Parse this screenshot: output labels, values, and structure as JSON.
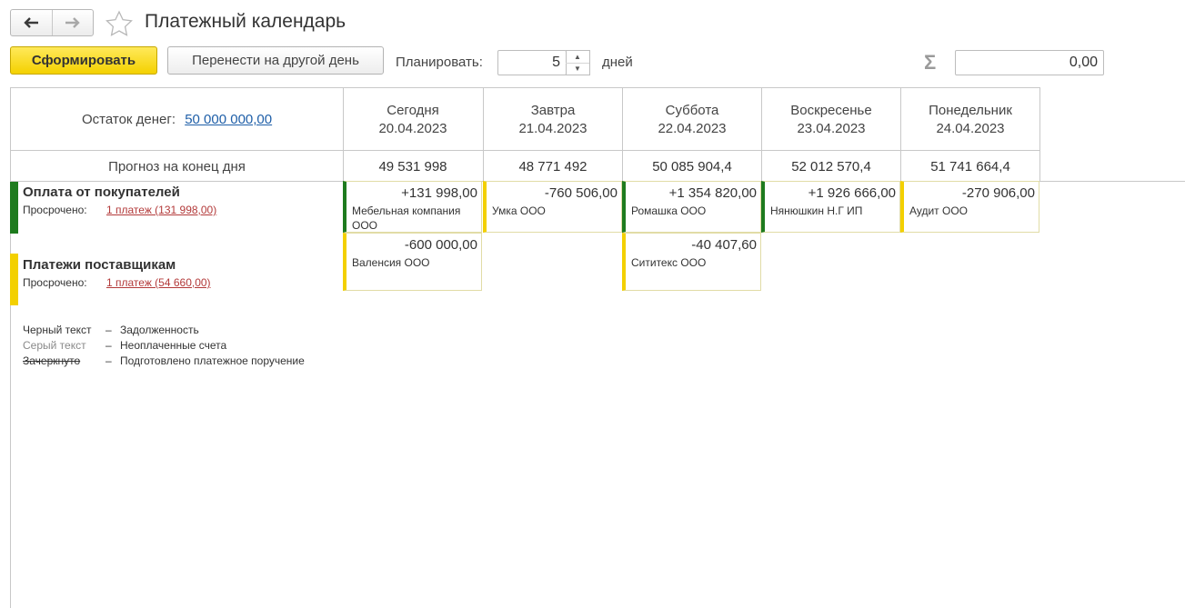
{
  "window": {
    "title": "Платежный календарь"
  },
  "icons": {
    "back": "arrow-left-icon",
    "forward": "arrow-right-icon",
    "favorite": "star-icon",
    "sum": "sigma-icon"
  },
  "toolbar": {
    "generate_label": "Сформировать",
    "move_label": "Перенести на другой день",
    "plan_label": "Планировать:",
    "plan_value": "5",
    "days_label": "дней",
    "sum_value": "0,00"
  },
  "balance": {
    "label": "Остаток денег:",
    "value": "50 000 000,00"
  },
  "forecast_label": "Прогноз на конец дня",
  "days": [
    {
      "name": "Сегодня",
      "date": "20.04.2023",
      "forecast": "49 531 998"
    },
    {
      "name": "Завтра",
      "date": "21.04.2023",
      "forecast": "48 771 492"
    },
    {
      "name": "Суббота",
      "date": "22.04.2023",
      "forecast": "50 085 904,4"
    },
    {
      "name": "Воскресенье",
      "date": "23.04.2023",
      "forecast": "52 012 570,4"
    },
    {
      "name": "Понедельник",
      "date": "24.04.2023",
      "forecast": "51 741 664,4"
    }
  ],
  "sections": {
    "customers": {
      "title": "Оплата от покупателей",
      "overdue_label": "Просрочено:",
      "overdue_link": "1 платеж (131 998,00)",
      "color": "#1e7b1e",
      "cards": [
        {
          "amount": "+131 998,00",
          "name": "Мебельная компания ООО",
          "status": "#1e7b1e"
        },
        {
          "amount": "-760 506,00",
          "name": "Умка ООО",
          "status": "#f3d000"
        },
        {
          "amount": "+1 354 820,00",
          "name": "Ромашка ООО",
          "status": "#1e7b1e"
        },
        {
          "amount": "+1 926 666,00",
          "name": "Нянюшкин Н.Г ИП",
          "status": "#1e7b1e"
        },
        {
          "amount": "-270 906,00",
          "name": "Аудит ООО",
          "status": "#f3d000"
        }
      ]
    },
    "suppliers": {
      "title": "Платежи поставщикам",
      "overdue_label": "Просрочено:",
      "overdue_link": "1 платеж (54 660,00)",
      "color": "#f3d000",
      "cards": [
        {
          "amount": "-600 000,00",
          "name": "Валенсия ООО",
          "status": "#f3d000"
        },
        {
          "amount": "-40 407,60",
          "name": "Сититекс ООО",
          "status": "#f3d000"
        }
      ]
    }
  },
  "legend": [
    {
      "term": "Черный текст",
      "dash": "–",
      "desc": "Задолженность"
    },
    {
      "term": "Серый текст",
      "dash": "–",
      "desc": "Неоплаченные счета"
    },
    {
      "term": "Зачеркнуто",
      "dash": "–",
      "desc": "Подготовлено платежное поручение"
    }
  ]
}
